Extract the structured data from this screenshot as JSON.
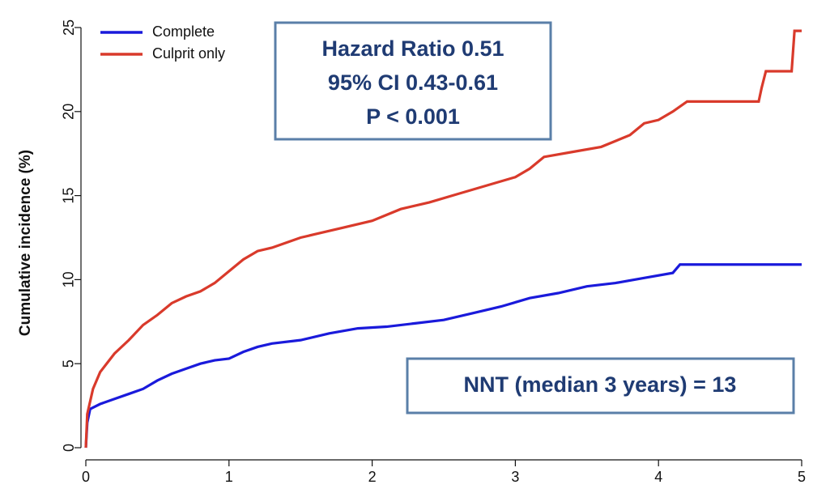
{
  "chart_data": {
    "type": "line",
    "y_label": "Cumulative incidence (%)",
    "xlim": [
      0,
      5
    ],
    "xticks": [
      0,
      1,
      2,
      3,
      4,
      5
    ],
    "ylim": [
      0,
      25
    ],
    "yticks": [
      0,
      5,
      10,
      15,
      20,
      25
    ],
    "legend": "top-left",
    "annotations": [
      "Hazard Ratio 0.51",
      "95% CI 0.43-0.61",
      "P < 0.001",
      "NNT (median 3 years) = 13"
    ],
    "series": [
      {
        "name": "Complete",
        "color": "#1a1adb",
        "x": [
          0,
          0.01,
          0.03,
          0.1,
          0.2,
          0.3,
          0.4,
          0.5,
          0.6,
          0.7,
          0.8,
          0.9,
          1.0,
          1.1,
          1.2,
          1.3,
          1.5,
          1.7,
          1.9,
          2.1,
          2.3,
          2.5,
          2.7,
          2.9,
          3.1,
          3.3,
          3.5,
          3.7,
          3.9,
          4.1,
          4.15,
          5.0
        ],
        "values": [
          0,
          1.5,
          2.3,
          2.6,
          2.9,
          3.2,
          3.5,
          4.0,
          4.4,
          4.7,
          5.0,
          5.2,
          5.3,
          5.7,
          6.0,
          6.2,
          6.4,
          6.8,
          7.1,
          7.2,
          7.4,
          7.6,
          8.0,
          8.4,
          8.9,
          9.2,
          9.6,
          9.8,
          10.1,
          10.4,
          10.9,
          10.9
        ]
      },
      {
        "name": "Culprit only",
        "color": "#d93a2b",
        "x": [
          0,
          0.01,
          0.05,
          0.1,
          0.2,
          0.3,
          0.4,
          0.5,
          0.6,
          0.7,
          0.8,
          0.9,
          1.0,
          1.1,
          1.2,
          1.3,
          1.4,
          1.5,
          1.6,
          1.8,
          2.0,
          2.2,
          2.4,
          2.6,
          2.8,
          3.0,
          3.1,
          3.2,
          3.4,
          3.6,
          3.8,
          3.9,
          4.0,
          4.1,
          4.2,
          4.4,
          4.7,
          4.72,
          4.75,
          4.93,
          4.95,
          5.0
        ],
        "values": [
          0,
          2,
          3.5,
          4.5,
          5.6,
          6.4,
          7.3,
          7.9,
          8.6,
          9.0,
          9.3,
          9.8,
          10.5,
          11.2,
          11.7,
          11.9,
          12.2,
          12.5,
          12.7,
          13.1,
          13.5,
          14.2,
          14.6,
          15.1,
          15.6,
          16.1,
          16.6,
          17.3,
          17.6,
          17.9,
          18.6,
          19.3,
          19.5,
          20.0,
          20.6,
          20.6,
          20.6,
          21.4,
          22.4,
          22.4,
          24.8,
          24.8
        ]
      }
    ]
  }
}
